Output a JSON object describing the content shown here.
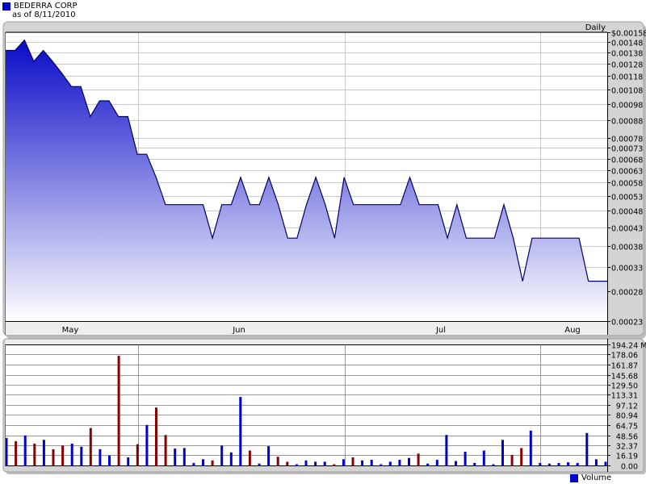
{
  "header": {
    "title": "BEDERRA CORP",
    "subtitle": "as of 8/11/2010",
    "title_color": "#0000cc"
  },
  "chart_data": [
    {
      "type": "area",
      "period_label": "Daily",
      "y_scale": "log",
      "ylim": [
        0.00023,
        0.00158
      ],
      "y_tick_values": [
        0.00158,
        0.00148,
        0.00138,
        0.00128,
        0.00118,
        0.00108,
        0.00098,
        0.00088,
        0.00078,
        0.00073,
        0.00068,
        0.00063,
        0.00058,
        0.00053,
        0.00048,
        0.00043,
        0.00038,
        0.00033,
        0.00028,
        0.00023
      ],
      "y_tick_labels": [
        "$0.00158",
        "0.00148",
        "0.00138",
        "0.00128",
        "0.00118",
        "0.00108",
        "0.00098",
        "0.00088",
        "0.00078",
        "0.00073",
        "0.00068",
        "0.00063",
        "0.00058",
        "0.00053",
        "0.00048",
        "0.00043",
        "0.00038",
        "0.00033",
        "0.00028",
        "0.00023"
      ],
      "x_tick_labels": [
        "May",
        "Jun",
        "Jul",
        "Aug"
      ],
      "grid": true,
      "fill_top_color": "#0a0ac8",
      "fill_bottom_color": "#ffffff",
      "line_color": "#000066",
      "values": [
        0.0014,
        0.0014,
        0.0015,
        0.0013,
        0.0014,
        0.0013,
        0.0012,
        0.0011,
        0.0011,
        0.0009,
        0.001,
        0.001,
        0.0009,
        0.0009,
        0.0007,
        0.0007,
        0.0006,
        0.0005,
        0.0005,
        0.0005,
        0.0005,
        0.0005,
        0.0004,
        0.0005,
        0.0005,
        0.0006,
        0.0005,
        0.0005,
        0.0006,
        0.0005,
        0.0004,
        0.0004,
        0.0005,
        0.0006,
        0.0005,
        0.0004,
        0.0006,
        0.0005,
        0.0005,
        0.0005,
        0.0005,
        0.0005,
        0.0005,
        0.0006,
        0.0005,
        0.0005,
        0.0005,
        0.0004,
        0.0005,
        0.0004,
        0.0004,
        0.0004,
        0.0004,
        0.0005,
        0.0004,
        0.0003,
        0.0004,
        0.0004,
        0.0004,
        0.0004,
        0.0004,
        0.0004,
        0.0003,
        0.0003,
        0.0003
      ]
    },
    {
      "type": "bar",
      "ylim": [
        0,
        194.24
      ],
      "y_unit": "M",
      "y_tick_values": [
        194.24,
        178.06,
        161.87,
        145.68,
        129.5,
        113.31,
        97.12,
        80.94,
        64.75,
        48.56,
        32.37,
        16.19,
        0
      ],
      "y_tick_labels": [
        "194.24 M",
        "178.06",
        "161.87",
        "145.68",
        "129.50",
        "113.31",
        "97.12",
        "80.94",
        "64.75",
        "48.56",
        "32.37",
        "16.19",
        "0.00"
      ],
      "legend": "Volume",
      "legend_color": "#0000cc",
      "up_color": "#0000cc",
      "down_color": "#880000",
      "values": [
        44,
        39,
        48,
        35,
        41,
        26,
        32,
        35,
        30,
        60,
        26,
        16,
        176,
        13,
        34,
        65,
        93,
        49,
        27,
        28,
        4,
        10,
        8,
        32,
        21,
        110,
        24,
        3,
        31,
        14,
        6,
        2,
        8,
        6,
        6,
        2,
        10,
        13,
        8,
        9,
        2,
        6,
        9,
        12,
        19,
        3,
        9,
        49,
        7,
        22,
        4,
        24,
        2,
        41,
        17,
        28,
        56,
        4,
        3,
        4,
        5,
        4,
        52,
        10,
        6
      ],
      "directions": [
        "up",
        "down",
        "up",
        "down",
        "up",
        "down",
        "down",
        "up",
        "up",
        "down",
        "up",
        "up",
        "down",
        "up",
        "down",
        "up",
        "down",
        "down",
        "up",
        "up",
        "up",
        "up",
        "down",
        "up",
        "up",
        "up",
        "down",
        "up",
        "up",
        "down",
        "down",
        "up",
        "up",
        "up",
        "up",
        "down",
        "up",
        "down",
        "up",
        "up",
        "up",
        "up",
        "up",
        "up",
        "down",
        "up",
        "up",
        "up",
        "up",
        "up",
        "up",
        "up",
        "up",
        "up",
        "down",
        "down",
        "up",
        "up",
        "up",
        "up",
        "up",
        "up",
        "up",
        "up",
        "up"
      ]
    }
  ]
}
